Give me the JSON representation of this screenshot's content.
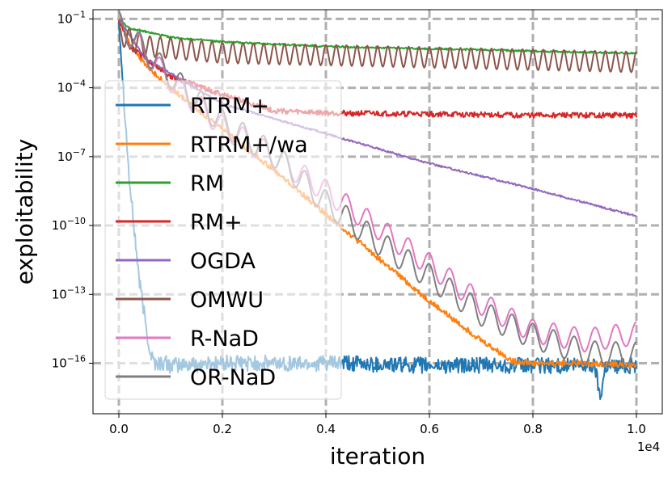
{
  "chart_data": {
    "type": "line",
    "title": "",
    "xlabel": "iteration",
    "ylabel": "exploitability",
    "x_multiplier_label": "1e4",
    "xlim": [
      -0.05,
      1.05
    ],
    "ylim_log10": [
      -18.2,
      -0.6
    ],
    "x_ticks": [
      0.0,
      0.2,
      0.4,
      0.6,
      0.8,
      1.0
    ],
    "x_tick_labels": [
      "0.0",
      "0.2",
      "0.4",
      "0.6",
      "0.8",
      "1.0"
    ],
    "y_ticks_log10": [
      -1,
      -4,
      -7,
      -10,
      -13,
      -16
    ],
    "y_tick_labels": [
      {
        "base": "10",
        "exp": "−1"
      },
      {
        "base": "10",
        "exp": "−4"
      },
      {
        "base": "10",
        "exp": "−7"
      },
      {
        "base": "10",
        "exp": "−10"
      },
      {
        "base": "10",
        "exp": "−13"
      },
      {
        "base": "10",
        "exp": "−16"
      }
    ],
    "grid": true,
    "legend_position": "left",
    "series": [
      {
        "name": "RTRM+",
        "color": "#1f77b4",
        "noise": 0.35,
        "freq": 0,
        "x": [
          0,
          0.01,
          0.02,
          0.04,
          0.06,
          0.07,
          0.09,
          0.1,
          0.2,
          0.4,
          0.6,
          0.8,
          0.92,
          0.93,
          0.94,
          1.0
        ],
        "log10y": [
          -1.0,
          -4.5,
          -8.0,
          -12.5,
          -15.5,
          -16.0,
          -16.0,
          -16.1,
          -16.0,
          -16.0,
          -16.1,
          -16.1,
          -16.1,
          -17.5,
          -16.1,
          -16.1
        ]
      },
      {
        "name": "RTRM+/wa",
        "color": "#ff7f0e",
        "noise": 0.12,
        "freq": 0,
        "x": [
          0,
          0.02,
          0.05,
          0.1,
          0.2,
          0.3,
          0.4,
          0.5,
          0.6,
          0.7,
          0.76,
          0.8,
          0.9,
          1.0
        ],
        "log10y": [
          -1.0,
          -2.0,
          -3.0,
          -4.0,
          -5.8,
          -7.6,
          -9.5,
          -11.4,
          -13.3,
          -15.0,
          -15.9,
          -16.0,
          -16.0,
          -16.1
        ]
      },
      {
        "name": "RM",
        "color": "#2ca02c",
        "noise": 0.04,
        "freq": 0,
        "x": [
          0,
          0.02,
          0.1,
          0.2,
          0.4,
          0.6,
          0.8,
          1.0
        ],
        "log10y": [
          -1.0,
          -1.4,
          -1.8,
          -2.0,
          -2.2,
          -2.3,
          -2.4,
          -2.5
        ]
      },
      {
        "name": "RM+",
        "color": "#d62728",
        "noise": 0.12,
        "freq": 0,
        "x": [
          0,
          0.02,
          0.1,
          0.2,
          0.3,
          0.4,
          0.6,
          0.8,
          1.0
        ],
        "log10y": [
          -1.0,
          -2.2,
          -3.5,
          -4.3,
          -5.0,
          -5.1,
          -5.15,
          -5.2,
          -5.2
        ]
      },
      {
        "name": "OGDA",
        "color": "#9467bd",
        "noise": 0.04,
        "freq": 0,
        "x": [
          0,
          0.05,
          0.2,
          0.4,
          0.6,
          0.8,
          1.0
        ],
        "log10y": [
          -1.0,
          -2.7,
          -4.7,
          -6.0,
          -7.3,
          -8.4,
          -9.6
        ]
      },
      {
        "name": "OMWU",
        "color": "#8c564b",
        "noise": 0.0,
        "freq": 0.02,
        "amp": 0.9,
        "x": [
          0,
          0.05,
          0.2,
          0.4,
          0.6,
          0.8,
          1.0
        ],
        "log10y": [
          -1.5,
          -2.0,
          -2.3,
          -2.4,
          -2.5,
          -2.6,
          -2.7
        ]
      },
      {
        "name": "R-NaD",
        "color": "#e377c2",
        "noise": 0.0,
        "freq": 0.04,
        "amp": 1.0,
        "x": [
          0,
          0.1,
          0.2,
          0.3,
          0.4,
          0.5,
          0.6,
          0.7,
          0.8,
          0.9,
          1.0
        ],
        "log10y": [
          -1.0,
          -3.5,
          -5.5,
          -6.8,
          -8.3,
          -9.9,
          -11.5,
          -13.2,
          -14.4,
          -14.8,
          -14.5
        ]
      },
      {
        "name": "OR-NaD",
        "color": "#7f7f7f",
        "noise": 0.0,
        "freq": 0.04,
        "amp": 1.1,
        "x": [
          0,
          0.1,
          0.2,
          0.3,
          0.4,
          0.5,
          0.6,
          0.7,
          0.8,
          0.9,
          0.93,
          1.0
        ],
        "log10y": [
          -1.0,
          -3.3,
          -5.3,
          -6.7,
          -8.8,
          -10.5,
          -12.0,
          -13.6,
          -14.6,
          -15.3,
          -15.4,
          -15.4
        ]
      }
    ]
  }
}
